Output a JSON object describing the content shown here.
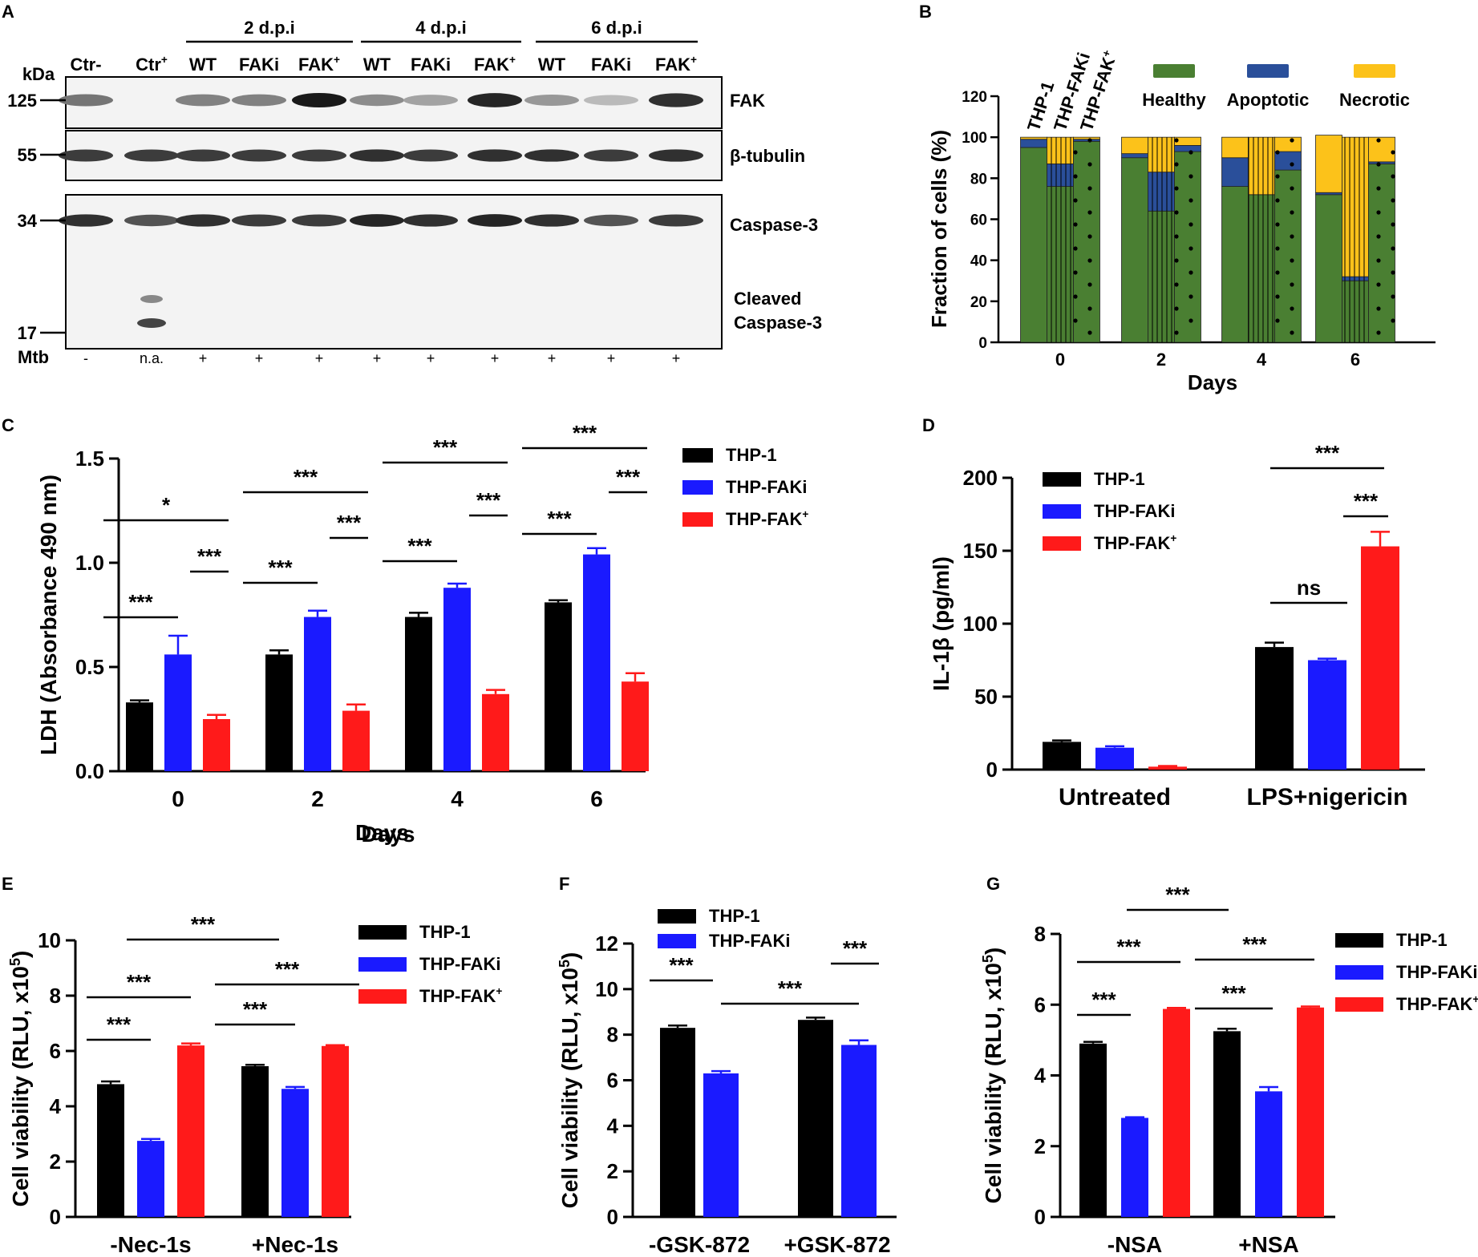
{
  "colors": {
    "black": "#000000",
    "blue": "#1a1aff",
    "red": "#ff1a1a",
    "healthy": "#4a7f32",
    "apoptotic": "#2a4f9a",
    "necrotic": "#fcc21a",
    "blot_bg": "#f3f3f3",
    "band": "#1c1c1c"
  },
  "chart_data": [
    {
      "panel": "A",
      "type": "table",
      "title": "Western blot",
      "kda_label": "kDa",
      "markers": [
        "125",
        "55",
        "34",
        "17"
      ],
      "groups": [
        "2 d.p.i",
        "4 d.p.i",
        "6 d.p.i"
      ],
      "lanes": [
        "Ctr-",
        "Ctr+",
        "WT",
        "FAKi",
        "FAK+",
        "WT",
        "FAKi",
        "FAK+",
        "WT",
        "FAKi",
        "FAK+"
      ],
      "mtb_label": "Mtb",
      "mtb": [
        "-",
        "n.a.",
        "+",
        "+",
        "+",
        "+",
        "+",
        "+",
        "+",
        "+",
        "+"
      ],
      "band_labels": [
        "FAK",
        "β-tubulin",
        "Caspase-3",
        "Cleaved",
        "Caspase-3"
      ],
      "fak_intensity": [
        0.6,
        0,
        0.55,
        0.55,
        1.0,
        0.5,
        0.4,
        0.95,
        0.45,
        0.3,
        0.9
      ],
      "tubulin_intensity": [
        0.85,
        0.85,
        0.85,
        0.85,
        0.85,
        0.9,
        0.85,
        0.9,
        0.9,
        0.85,
        0.9
      ],
      "caspase_intensity": [
        0.9,
        0.75,
        0.9,
        0.85,
        0.85,
        0.95,
        0.9,
        0.95,
        0.9,
        0.75,
        0.85
      ],
      "cleaved_lane": 1
    },
    {
      "panel": "B",
      "type": "bar",
      "stacked": true,
      "xlabel": "Days",
      "ylabel": "Fraction of cells (%)",
      "ylim": [
        0,
        120
      ],
      "yticks": [
        "0",
        "20",
        "40",
        "60",
        "80",
        "100",
        "120"
      ],
      "categories": [
        "0",
        "2",
        "4",
        "6"
      ],
      "cell_lines": [
        "THP-1",
        "THP-FAKi",
        "THP-FAK+"
      ],
      "legend": [
        "Healthy",
        "Apoptotic",
        "Necrotic"
      ],
      "healthy": [
        [
          95,
          76,
          98
        ],
        [
          90,
          64,
          93
        ],
        [
          76,
          72,
          84
        ],
        [
          72,
          30,
          87
        ]
      ],
      "apoptotic": [
        [
          4,
          11,
          1
        ],
        [
          2,
          19,
          3
        ],
        [
          14,
          0,
          9
        ],
        [
          1,
          2,
          1
        ]
      ],
      "necrotic": [
        [
          1,
          13,
          1
        ],
        [
          8,
          17,
          4
        ],
        [
          10,
          28,
          7
        ],
        [
          28,
          68,
          12
        ]
      ]
    },
    {
      "panel": "C",
      "type": "bar",
      "xlabel": "Days",
      "ylabel": "LDH (Absorbance 490 nm)",
      "ylim": [
        0,
        1.5
      ],
      "yticks": [
        "0.0",
        "0.5",
        "1.0",
        "1.5"
      ],
      "categories": [
        "0",
        "2",
        "4",
        "6"
      ],
      "series": [
        {
          "name": "THP-1",
          "values": [
            0.33,
            0.56,
            0.74,
            0.81
          ],
          "err": [
            0.01,
            0.02,
            0.02,
            0.01
          ]
        },
        {
          "name": "THP-FAKi",
          "values": [
            0.56,
            0.74,
            0.88,
            1.04
          ],
          "err": [
            0.09,
            0.03,
            0.02,
            0.03
          ]
        },
        {
          "name": "THP-FAK+",
          "values": [
            0.25,
            0.29,
            0.37,
            0.43
          ],
          "err": [
            0.02,
            0.03,
            0.02,
            0.04
          ]
        }
      ],
      "annotations": [
        "*",
        "***",
        "***",
        "***",
        "***",
        "***",
        "***",
        "***",
        "***",
        "***",
        "***",
        "***"
      ]
    },
    {
      "panel": "D",
      "type": "bar",
      "xlabel": "",
      "ylabel": "IL-1β (pg/ml)",
      "ylim": [
        0,
        200
      ],
      "yticks": [
        "0",
        "50",
        "100",
        "150",
        "200"
      ],
      "categories": [
        "Untreated",
        "LPS+nigericin"
      ],
      "series": [
        {
          "name": "THP-1",
          "values": [
            19,
            84
          ],
          "err": [
            1,
            3
          ]
        },
        {
          "name": "THP-FAKi",
          "values": [
            15,
            75
          ],
          "err": [
            1,
            1
          ]
        },
        {
          "name": "THP-FAK+",
          "values": [
            2,
            153
          ],
          "err": [
            0.5,
            10
          ]
        }
      ],
      "annotations": [
        "***",
        "***",
        "ns"
      ]
    },
    {
      "panel": "E",
      "type": "bar",
      "xlabel": "",
      "ylabel": "Cell viability (RLU, x10^5)",
      "ylim": [
        0,
        10
      ],
      "yticks": [
        "0",
        "2",
        "4",
        "6",
        "8",
        "10"
      ],
      "categories": [
        "-Nec-1s",
        "+Nec-1s"
      ],
      "series": [
        {
          "name": "THP-1",
          "values": [
            4.8,
            5.45
          ],
          "err": [
            0.1,
            0.05
          ]
        },
        {
          "name": "THP-FAKi",
          "values": [
            2.75,
            4.63
          ],
          "err": [
            0.07,
            0.07
          ]
        },
        {
          "name": "THP-FAK+",
          "values": [
            6.2,
            6.18
          ],
          "err": [
            0.07,
            0.03
          ]
        }
      ],
      "annotations": [
        "***",
        "***",
        "***",
        "***",
        "***"
      ]
    },
    {
      "panel": "F",
      "type": "bar",
      "xlabel": "",
      "ylabel": "Cell viability  (RLU, x10^5)",
      "ylim": [
        0,
        12
      ],
      "yticks": [
        "0",
        "2",
        "4",
        "6",
        "8",
        "10",
        "12"
      ],
      "categories": [
        "-GSK-872",
        "+GSK-872"
      ],
      "series": [
        {
          "name": "THP-1",
          "values": [
            8.3,
            8.65
          ],
          "err": [
            0.1,
            0.1
          ]
        },
        {
          "name": "THP-FAKi",
          "values": [
            6.3,
            7.55
          ],
          "err": [
            0.1,
            0.2
          ]
        }
      ],
      "annotations": [
        "***",
        "***",
        "***"
      ]
    },
    {
      "panel": "G",
      "type": "bar",
      "xlabel": "",
      "ylabel": "Cell viability (RLU, x10^5)",
      "ylim": [
        0,
        8
      ],
      "yticks": [
        "0",
        "2",
        "4",
        "6",
        "8"
      ],
      "categories": [
        "-NSA",
        "+NSA"
      ],
      "series": [
        {
          "name": "THP-1",
          "values": [
            4.9,
            5.25
          ],
          "err": [
            0.05,
            0.07
          ]
        },
        {
          "name": "THP-FAKi",
          "values": [
            2.8,
            3.55
          ],
          "err": [
            0.02,
            0.12
          ]
        },
        {
          "name": "THP-FAK+",
          "values": [
            5.88,
            5.92
          ],
          "err": [
            0.03,
            0.03
          ]
        }
      ],
      "annotations": [
        "***",
        "***",
        "***",
        "***",
        "***"
      ]
    }
  ]
}
